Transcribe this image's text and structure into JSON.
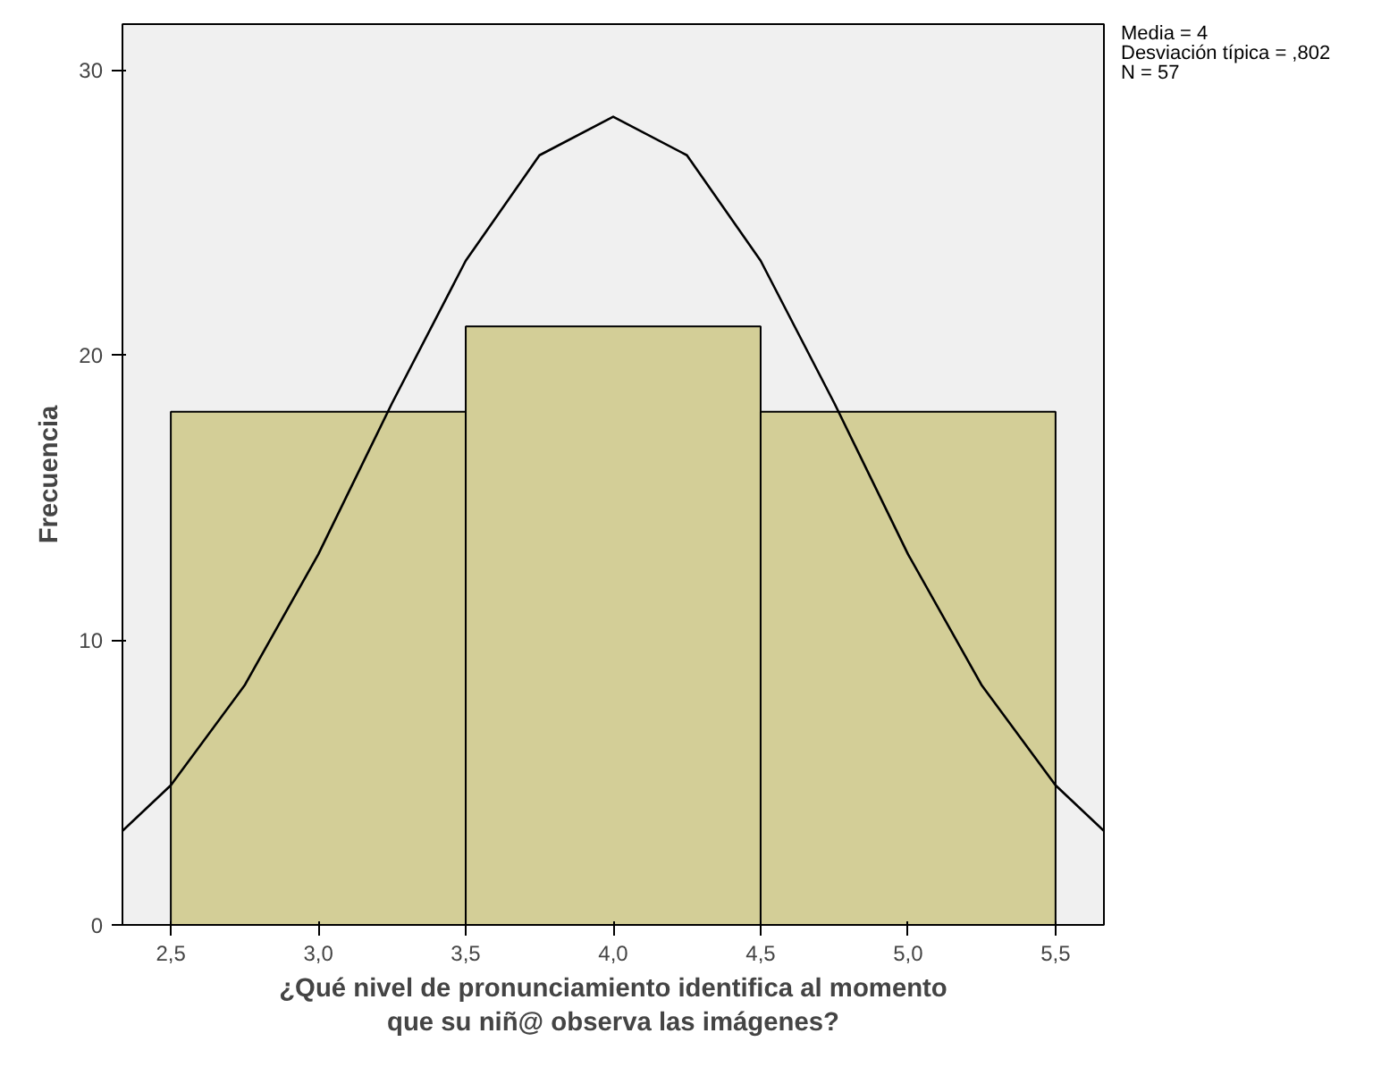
{
  "chart_data": {
    "type": "histogram",
    "xlabel": "¿Qué nivel de pronunciamiento identifica al momento\nque su niñ@ observa las imágenes?",
    "ylabel": "Frecuencia",
    "bins": [
      2.5,
      3.5,
      4.5,
      5.5
    ],
    "values": [
      18,
      21,
      18
    ],
    "color": "#d3ce97",
    "series": [
      {
        "type": "line",
        "color": "#000000",
        "x": [
          2.336,
          2.5,
          2.75,
          3.0,
          3.25,
          3.5,
          3.75,
          4.0,
          4.25,
          4.5,
          4.75,
          5.0,
          5.25,
          5.5,
          5.664
        ],
        "values": [
          3.3,
          4.9,
          8.4,
          13.0,
          18.3,
          23.3,
          27.0,
          28.35,
          27.0,
          23.3,
          18.3,
          13.0,
          8.4,
          4.9,
          3.3
        ]
      }
    ],
    "xlim": [
      2.336,
      5.664
    ],
    "ylim": [
      0,
      31.6
    ],
    "xticks": [
      {
        "value": 2.5,
        "label": "2,5"
      },
      {
        "value": 3.0,
        "label": "3,0"
      },
      {
        "value": 3.5,
        "label": "3,5"
      },
      {
        "value": 4.0,
        "label": "4,0"
      },
      {
        "value": 4.5,
        "label": "4,5"
      },
      {
        "value": 5.0,
        "label": "5,0"
      },
      {
        "value": 5.5,
        "label": "5,5"
      }
    ],
    "yticks": [
      0,
      10,
      20,
      30
    ],
    "annotations": [
      "Media = 4",
      "Desviación típica = ,802",
      "N = 57"
    ],
    "grid": false
  }
}
